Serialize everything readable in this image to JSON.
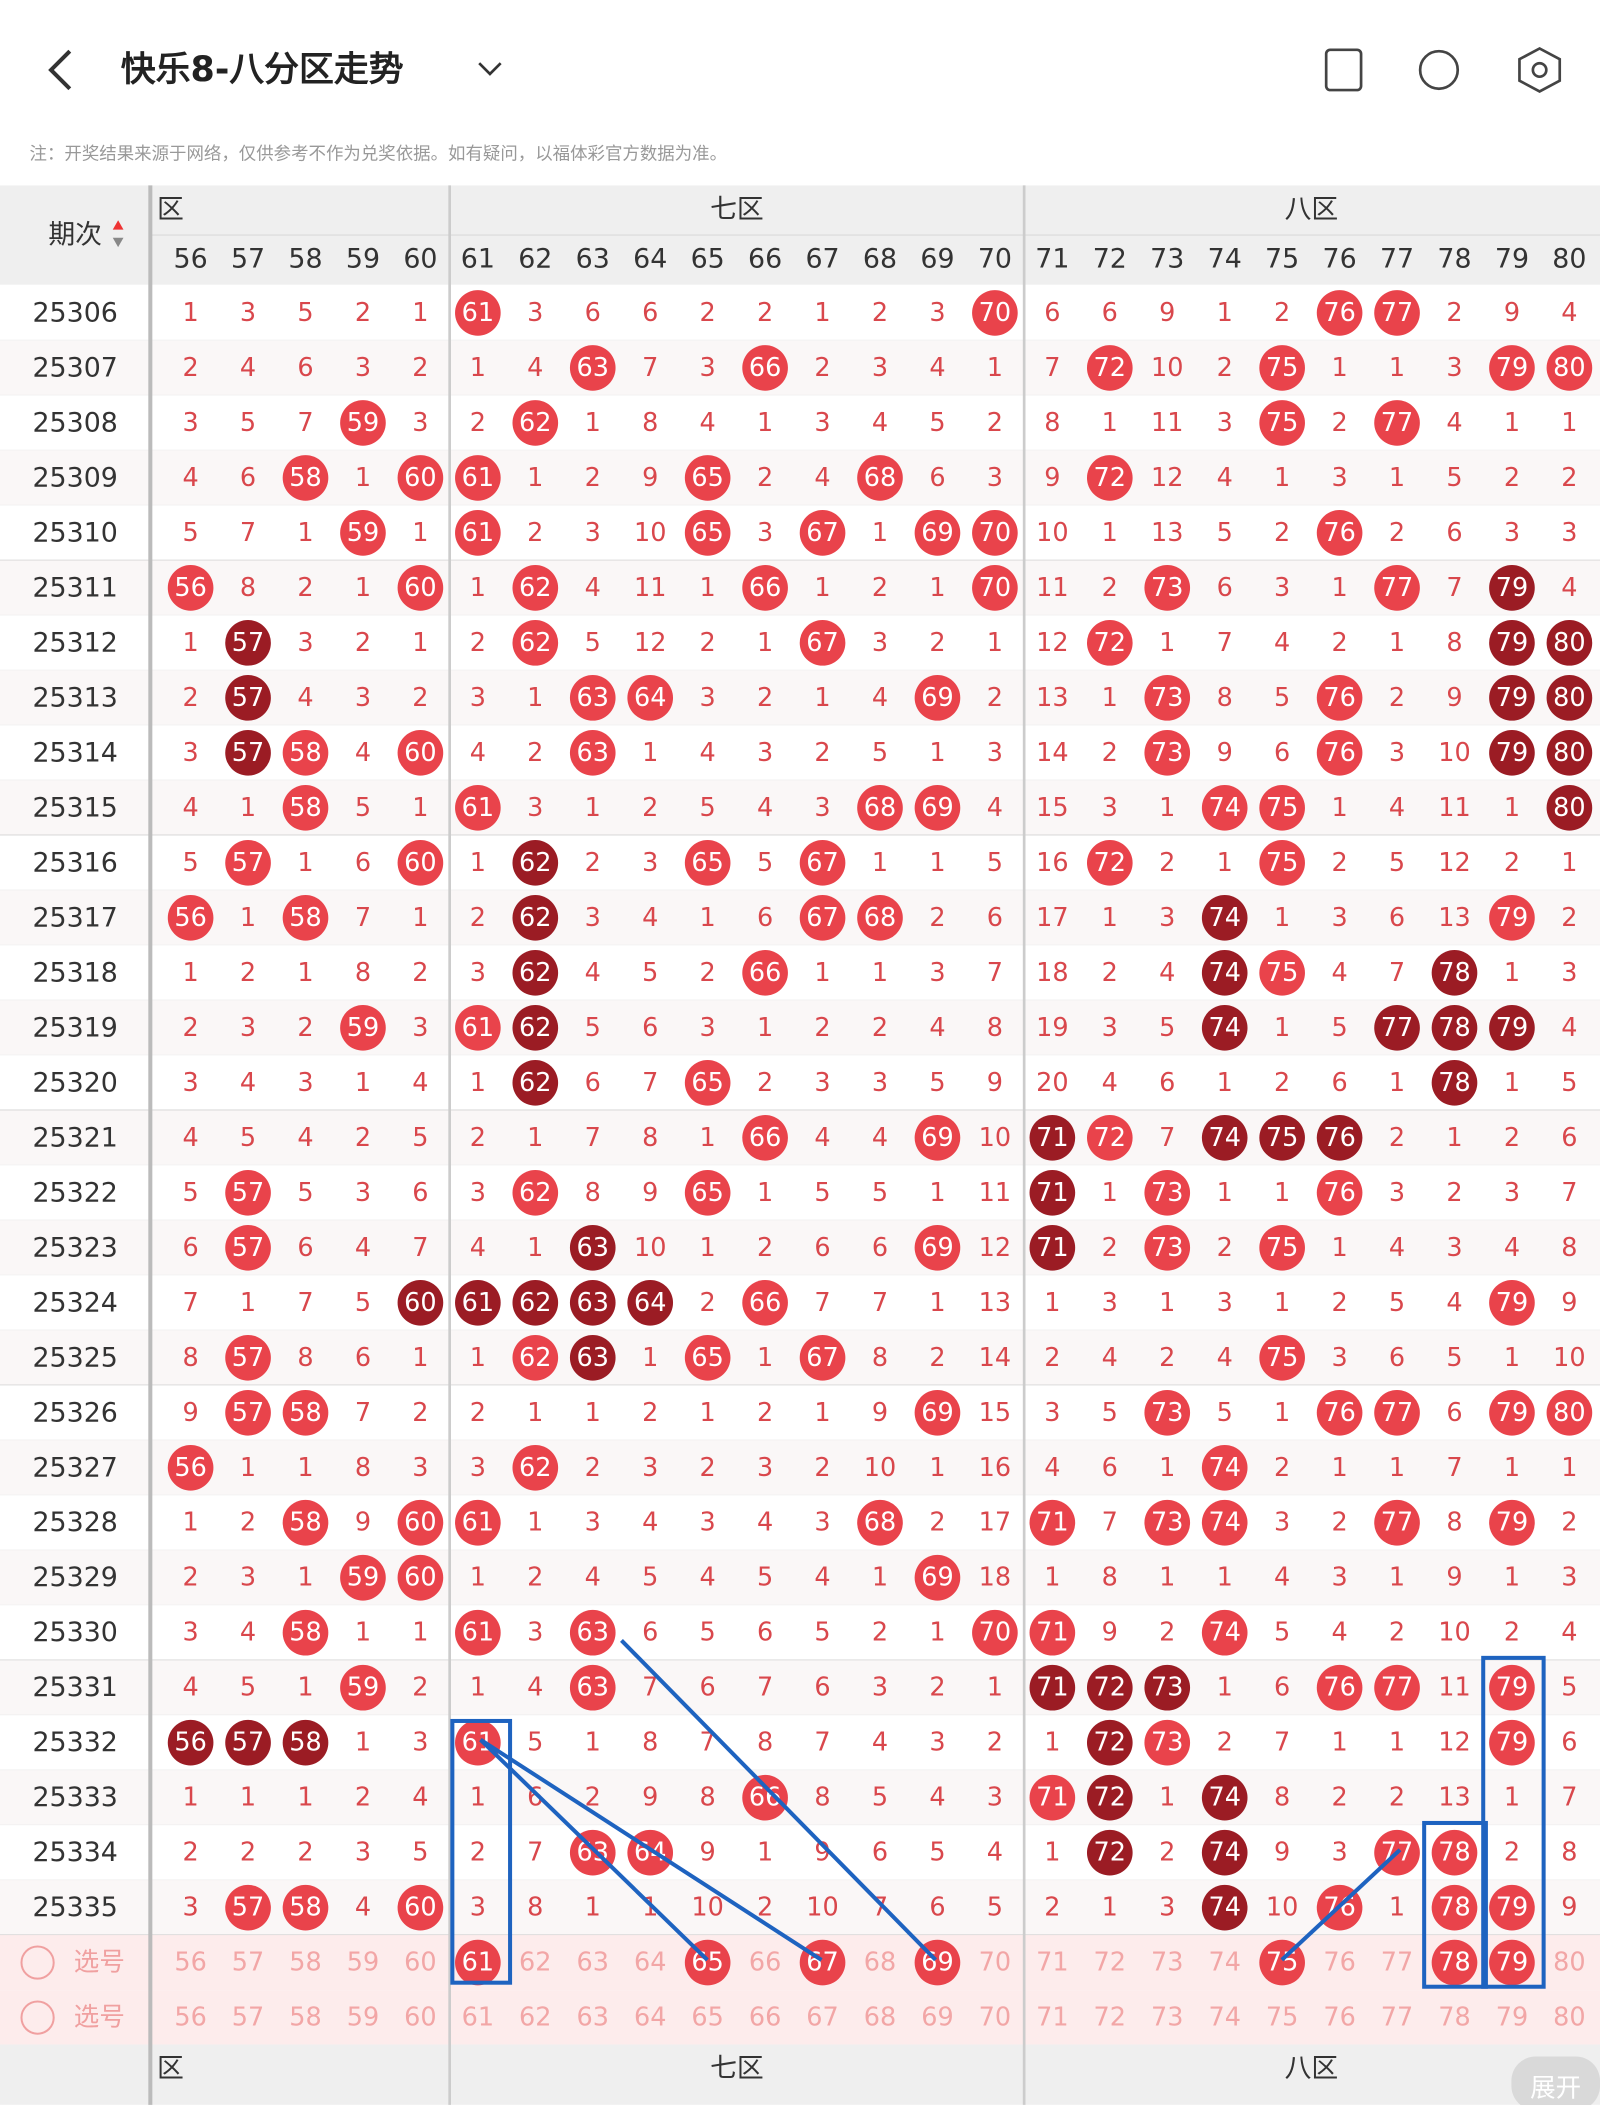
{
  "header": {
    "title": "快乐8-八分区走势",
    "notice": "注：开奖结果来源于网络，仅供参考不作为兑奖依据。如有疑问，以福体彩官方数据为准。"
  },
  "table": {
    "period_label": "期次",
    "zones": [
      "区",
      "七区",
      "八区"
    ],
    "columns": [
      56,
      57,
      58,
      59,
      60,
      61,
      62,
      63,
      64,
      65,
      66,
      67,
      68,
      69,
      70,
      71,
      72,
      73,
      74,
      75,
      76,
      77,
      78,
      79,
      80
    ],
    "rows": [
      {
        "period": "25306",
        "cells": [
          1,
          3,
          5,
          2,
          1,
          61,
          3,
          6,
          6,
          2,
          2,
          1,
          2,
          3,
          70,
          6,
          6,
          9,
          1,
          2,
          76,
          77,
          2,
          9,
          4
        ]
      },
      {
        "period": "25307",
        "cells": [
          2,
          4,
          6,
          3,
          2,
          1,
          4,
          63,
          7,
          3,
          66,
          2,
          3,
          4,
          1,
          7,
          72,
          10,
          2,
          75,
          1,
          1,
          3,
          79,
          80
        ]
      },
      {
        "period": "25308",
        "cells": [
          3,
          5,
          7,
          59,
          3,
          2,
          62,
          1,
          8,
          4,
          1,
          3,
          4,
          5,
          2,
          8,
          1,
          11,
          3,
          75,
          2,
          77,
          4,
          1,
          1
        ]
      },
      {
        "period": "25309",
        "cells": [
          4,
          6,
          58,
          1,
          60,
          61,
          1,
          2,
          9,
          65,
          2,
          4,
          68,
          6,
          3,
          9,
          72,
          12,
          4,
          1,
          3,
          1,
          5,
          2,
          2
        ]
      },
      {
        "period": "25310",
        "cells": [
          5,
          7,
          1,
          59,
          1,
          61,
          2,
          3,
          10,
          65,
          3,
          67,
          1,
          69,
          70,
          10,
          1,
          13,
          5,
          2,
          76,
          2,
          6,
          3,
          3
        ]
      },
      {
        "period": "25311",
        "cells": [
          56,
          8,
          2,
          1,
          60,
          1,
          62,
          4,
          11,
          1,
          66,
          1,
          2,
          1,
          70,
          11,
          2,
          73,
          6,
          3,
          1,
          77,
          7,
          79,
          4
        ]
      },
      {
        "period": "25312",
        "cells": [
          1,
          57,
          3,
          2,
          1,
          2,
          62,
          5,
          12,
          2,
          1,
          67,
          3,
          2,
          1,
          12,
          72,
          1,
          7,
          4,
          2,
          1,
          8,
          79,
          80
        ]
      },
      {
        "period": "25313",
        "cells": [
          2,
          57,
          4,
          3,
          2,
          3,
          1,
          63,
          64,
          3,
          2,
          1,
          4,
          69,
          2,
          13,
          1,
          73,
          8,
          5,
          76,
          2,
          9,
          79,
          80
        ]
      },
      {
        "period": "25314",
        "cells": [
          3,
          57,
          58,
          4,
          60,
          4,
          2,
          63,
          1,
          4,
          3,
          2,
          5,
          1,
          3,
          14,
          2,
          73,
          9,
          6,
          76,
          3,
          10,
          79,
          80
        ]
      },
      {
        "period": "25315",
        "cells": [
          4,
          1,
          58,
          5,
          1,
          61,
          3,
          1,
          2,
          5,
          4,
          3,
          68,
          69,
          4,
          15,
          3,
          1,
          74,
          75,
          1,
          4,
          11,
          1,
          80
        ]
      },
      {
        "period": "25316",
        "cells": [
          5,
          57,
          1,
          6,
          60,
          1,
          62,
          2,
          3,
          65,
          5,
          67,
          1,
          1,
          5,
          16,
          72,
          2,
          1,
          75,
          2,
          5,
          12,
          2,
          1
        ]
      },
      {
        "period": "25317",
        "cells": [
          56,
          1,
          58,
          7,
          1,
          2,
          62,
          3,
          4,
          1,
          6,
          67,
          68,
          2,
          6,
          17,
          1,
          3,
          74,
          1,
          3,
          6,
          13,
          79,
          2
        ]
      },
      {
        "period": "25318",
        "cells": [
          1,
          2,
          1,
          8,
          2,
          3,
          62,
          4,
          5,
          2,
          66,
          1,
          1,
          3,
          7,
          18,
          2,
          4,
          74,
          75,
          4,
          7,
          78,
          1,
          3
        ]
      },
      {
        "period": "25319",
        "cells": [
          2,
          3,
          2,
          59,
          3,
          61,
          62,
          5,
          6,
          3,
          1,
          2,
          2,
          4,
          8,
          19,
          3,
          5,
          74,
          1,
          5,
          77,
          78,
          79,
          4
        ]
      },
      {
        "period": "25320",
        "cells": [
          3,
          4,
          3,
          1,
          4,
          1,
          62,
          6,
          7,
          65,
          2,
          3,
          3,
          5,
          9,
          20,
          4,
          6,
          1,
          2,
          6,
          1,
          78,
          1,
          5
        ]
      },
      {
        "period": "25321",
        "cells": [
          4,
          5,
          4,
          2,
          5,
          2,
          1,
          7,
          8,
          1,
          66,
          4,
          4,
          69,
          10,
          71,
          72,
          7,
          74,
          75,
          76,
          2,
          1,
          2,
          6
        ]
      },
      {
        "period": "25322",
        "cells": [
          5,
          57,
          5,
          3,
          6,
          3,
          62,
          8,
          9,
          65,
          1,
          5,
          5,
          1,
          11,
          71,
          1,
          73,
          1,
          1,
          76,
          3,
          2,
          3,
          7
        ]
      },
      {
        "period": "25323",
        "cells": [
          6,
          57,
          6,
          4,
          7,
          4,
          1,
          63,
          10,
          1,
          2,
          6,
          6,
          69,
          12,
          71,
          2,
          73,
          2,
          75,
          1,
          4,
          3,
          4,
          8
        ]
      },
      {
        "period": "25324",
        "cells": [
          7,
          1,
          7,
          5,
          60,
          61,
          62,
          63,
          64,
          2,
          66,
          7,
          7,
          1,
          13,
          1,
          3,
          1,
          3,
          1,
          2,
          5,
          4,
          79,
          9
        ]
      },
      {
        "period": "25325",
        "cells": [
          8,
          57,
          8,
          6,
          1,
          1,
          62,
          63,
          1,
          65,
          1,
          67,
          8,
          2,
          14,
          2,
          4,
          2,
          4,
          75,
          3,
          6,
          5,
          1,
          10
        ]
      },
      {
        "period": "25326",
        "cells": [
          9,
          57,
          58,
          7,
          2,
          2,
          1,
          1,
          2,
          1,
          2,
          1,
          9,
          69,
          15,
          3,
          5,
          73,
          5,
          1,
          76,
          77,
          6,
          79,
          80
        ]
      },
      {
        "period": "25327",
        "cells": [
          56,
          1,
          1,
          8,
          3,
          3,
          62,
          2,
          3,
          2,
          3,
          2,
          10,
          1,
          16,
          4,
          6,
          1,
          74,
          2,
          1,
          1,
          7,
          1,
          1
        ]
      },
      {
        "period": "25328",
        "cells": [
          1,
          2,
          58,
          9,
          60,
          61,
          1,
          3,
          4,
          3,
          4,
          3,
          68,
          2,
          17,
          71,
          7,
          73,
          74,
          3,
          2,
          77,
          8,
          79,
          2
        ]
      },
      {
        "period": "25329",
        "cells": [
          2,
          3,
          1,
          59,
          60,
          1,
          2,
          4,
          5,
          4,
          5,
          4,
          1,
          69,
          18,
          1,
          8,
          1,
          1,
          4,
          3,
          1,
          9,
          1,
          3
        ]
      },
      {
        "period": "25330",
        "cells": [
          3,
          4,
          58,
          1,
          1,
          61,
          3,
          63,
          6,
          5,
          6,
          5,
          2,
          1,
          70,
          71,
          9,
          2,
          74,
          5,
          4,
          2,
          10,
          2,
          4
        ]
      },
      {
        "period": "25331",
        "cells": [
          4,
          5,
          1,
          59,
          2,
          1,
          4,
          63,
          7,
          6,
          7,
          6,
          3,
          2,
          1,
          71,
          72,
          73,
          1,
          6,
          76,
          77,
          11,
          79,
          5
        ]
      },
      {
        "period": "25332",
        "cells": [
          56,
          57,
          58,
          1,
          3,
          61,
          5,
          1,
          8,
          7,
          8,
          7,
          4,
          3,
          2,
          1,
          72,
          73,
          2,
          7,
          1,
          1,
          12,
          79,
          6
        ]
      },
      {
        "period": "25333",
        "cells": [
          1,
          1,
          1,
          2,
          4,
          1,
          6,
          2,
          9,
          8,
          66,
          8,
          5,
          4,
          3,
          71,
          72,
          1,
          74,
          8,
          2,
          2,
          13,
          1,
          7
        ]
      },
      {
        "period": "25334",
        "cells": [
          2,
          2,
          2,
          3,
          5,
          2,
          7,
          63,
          64,
          9,
          1,
          9,
          6,
          5,
          4,
          1,
          72,
          2,
          74,
          9,
          3,
          77,
          78,
          2,
          8
        ]
      },
      {
        "period": "25335",
        "cells": [
          3,
          57,
          58,
          4,
          60,
          3,
          8,
          1,
          1,
          10,
          2,
          10,
          7,
          6,
          5,
          2,
          1,
          3,
          74,
          10,
          76,
          1,
          78,
          79,
          9
        ]
      }
    ]
  },
  "select_rows": [
    {
      "label": "选号",
      "numbers": [
        56,
        57,
        58,
        59,
        60,
        61,
        62,
        63,
        64,
        65,
        66,
        67,
        68,
        69,
        70,
        71,
        72,
        73,
        74,
        75,
        76,
        77,
        78,
        79,
        80
      ],
      "selected": [
        61,
        65,
        67,
        69,
        75,
        78,
        79
      ]
    },
    {
      "label": "选号",
      "numbers": [
        56,
        57,
        58,
        59,
        60,
        61,
        62,
        63,
        64,
        65,
        66,
        67,
        68,
        69,
        70,
        71,
        72,
        73,
        74,
        75,
        76,
        77,
        78,
        79,
        80
      ],
      "selected": []
    }
  ],
  "footer": {
    "zones": [
      "区",
      "七区",
      "八区"
    ],
    "expand": "展开"
  }
}
